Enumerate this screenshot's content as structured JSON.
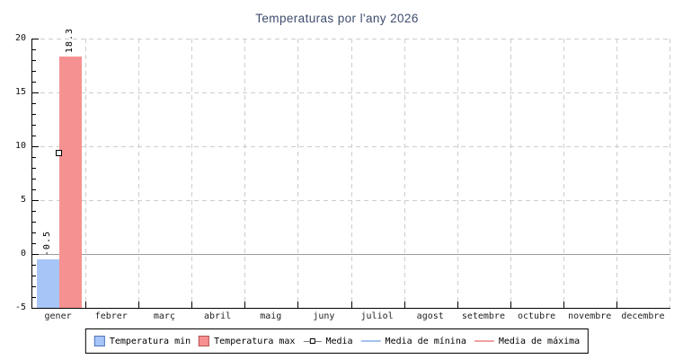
{
  "title": "Temperaturas por l'any 2026",
  "chart_data": {
    "type": "bar",
    "title": "Temperaturas por l'any 2026",
    "categories": [
      "gener",
      "febrer",
      "març",
      "abril",
      "maig",
      "juny",
      "juliol",
      "agost",
      "setembre",
      "octubre",
      "novembre",
      "decembre"
    ],
    "series": [
      {
        "name": "Temperatura min",
        "kind": "bar",
        "color": "#a8c5f7",
        "swatch_border": "#4f74b8",
        "values": [
          -0.5,
          null,
          null,
          null,
          null,
          null,
          null,
          null,
          null,
          null,
          null,
          null
        ],
        "value_labels": [
          "-0.5",
          null,
          null,
          null,
          null,
          null,
          null,
          null,
          null,
          null,
          null,
          null
        ]
      },
      {
        "name": "Temperatura max",
        "kind": "bar",
        "color": "#f69191",
        "swatch_border": "#b25252",
        "values": [
          18.3,
          null,
          null,
          null,
          null,
          null,
          null,
          null,
          null,
          null,
          null,
          null
        ],
        "value_labels": [
          "18.3",
          null,
          null,
          null,
          null,
          null,
          null,
          null,
          null,
          null,
          null,
          null
        ]
      },
      {
        "name": "Media",
        "kind": "point",
        "marker": "square",
        "color": "#000000",
        "values": [
          9.4,
          null,
          null,
          null,
          null,
          null,
          null,
          null,
          null,
          null,
          null,
          null
        ]
      },
      {
        "name": "Media de mínina",
        "kind": "line",
        "color": "#a4c2ec",
        "values": []
      },
      {
        "name": "Media de máxima",
        "kind": "line",
        "color": "#f4a0a0",
        "values": []
      }
    ],
    "ylim": [
      -5,
      20
    ],
    "yticks": [
      -5,
      0,
      5,
      10,
      15,
      20
    ],
    "ytick_interval": 5,
    "yminor_interval": 1,
    "grid": true,
    "zero_line": true,
    "legend_position": "bottom"
  },
  "colors": {
    "grid": "#cdcdcd",
    "zero_line": "#9a9a9a",
    "axis": "#000000",
    "title": "#3d4c6e",
    "background": "#ffffff"
  }
}
